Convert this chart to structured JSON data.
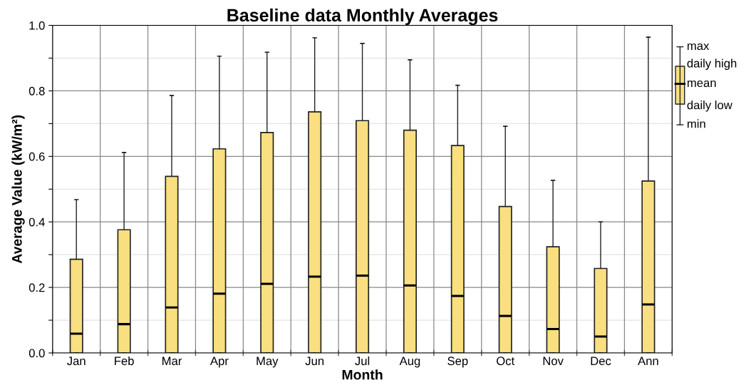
{
  "chart_data": {
    "type": "box",
    "title": "Baseline data Monthly Averages",
    "xlabel": "Month",
    "ylabel": "Average Value (kW/m²)",
    "categories": [
      "Jan",
      "Feb",
      "Mar",
      "Apr",
      "May",
      "Jun",
      "Jul",
      "Aug",
      "Sep",
      "Oct",
      "Nov",
      "Dec",
      "Ann"
    ],
    "series": [
      {
        "color": "#f9df7f",
        "boxes": [
          {
            "low": 0,
            "q1": 0,
            "median": 0.059,
            "q3": 0.286,
            "high": 0.468
          },
          {
            "low": 0,
            "q1": 0,
            "median": 0.088,
            "q3": 0.376,
            "high": 0.612
          },
          {
            "low": 0,
            "q1": 0,
            "median": 0.139,
            "q3": 0.539,
            "high": 0.786
          },
          {
            "low": 0,
            "q1": 0,
            "median": 0.181,
            "q3": 0.623,
            "high": 0.906
          },
          {
            "low": 0,
            "q1": 0,
            "median": 0.211,
            "q3": 0.673,
            "high": 0.918
          },
          {
            "low": 0,
            "q1": 0,
            "median": 0.233,
            "q3": 0.736,
            "high": 0.962
          },
          {
            "low": 0,
            "q1": 0,
            "median": 0.236,
            "q3": 0.709,
            "high": 0.945
          },
          {
            "low": 0,
            "q1": 0,
            "median": 0.206,
            "q3": 0.68,
            "high": 0.895
          },
          {
            "low": 0,
            "q1": 0,
            "median": 0.174,
            "q3": 0.633,
            "high": 0.817
          },
          {
            "low": 0,
            "q1": 0,
            "median": 0.113,
            "q3": 0.447,
            "high": 0.692
          },
          {
            "low": 0,
            "q1": 0,
            "median": 0.073,
            "q3": 0.324,
            "high": 0.527
          },
          {
            "low": 0,
            "q1": 0,
            "median": 0.05,
            "q3": 0.258,
            "high": 0.4
          },
          {
            "low": 0,
            "q1": 0,
            "median": 0.148,
            "q3": 0.525,
            "high": 0.964
          }
        ]
      }
    ],
    "ylim": [
      0,
      1.0
    ],
    "yticks": [
      {
        "value": 0,
        "label": "0.0"
      },
      {
        "value": 0.1,
        "label": null
      },
      {
        "value": 0.2,
        "label": "0.2"
      },
      {
        "value": 0.3,
        "label": null
      },
      {
        "value": 0.4,
        "label": "0.4"
      },
      {
        "value": 0.5,
        "label": null
      },
      {
        "value": 0.6,
        "label": "0.6"
      },
      {
        "value": 0.7,
        "label": null
      },
      {
        "value": 0.8,
        "label": "0.8"
      },
      {
        "value": 0.9,
        "label": null
      },
      {
        "value": 1.0,
        "label": "1.0"
      }
    ],
    "grid": true,
    "annotations": [
      "max",
      "daily high",
      "mean",
      "daily low",
      "min"
    ]
  }
}
